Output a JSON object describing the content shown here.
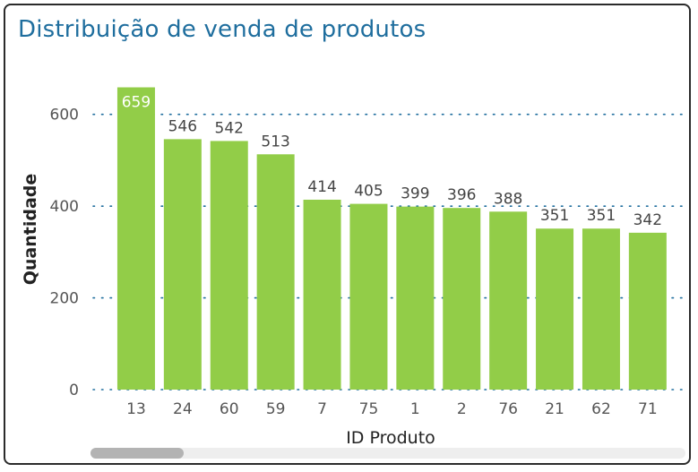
{
  "chart_data": {
    "type": "bar",
    "title": "Distribuição de venda de produtos",
    "xlabel": "ID Produto",
    "ylabel": "Quantidade",
    "categories": [
      "13",
      "24",
      "60",
      "59",
      "7",
      "75",
      "1",
      "2",
      "76",
      "21",
      "62",
      "71"
    ],
    "values": [
      659,
      546,
      542,
      513,
      414,
      405,
      399,
      396,
      388,
      351,
      351,
      342
    ],
    "yticks": [
      0,
      200,
      400,
      600
    ],
    "ylim": [
      0,
      660
    ],
    "grid": true,
    "bar_color": "#92cd48",
    "grid_color": "#1f6e9e"
  }
}
